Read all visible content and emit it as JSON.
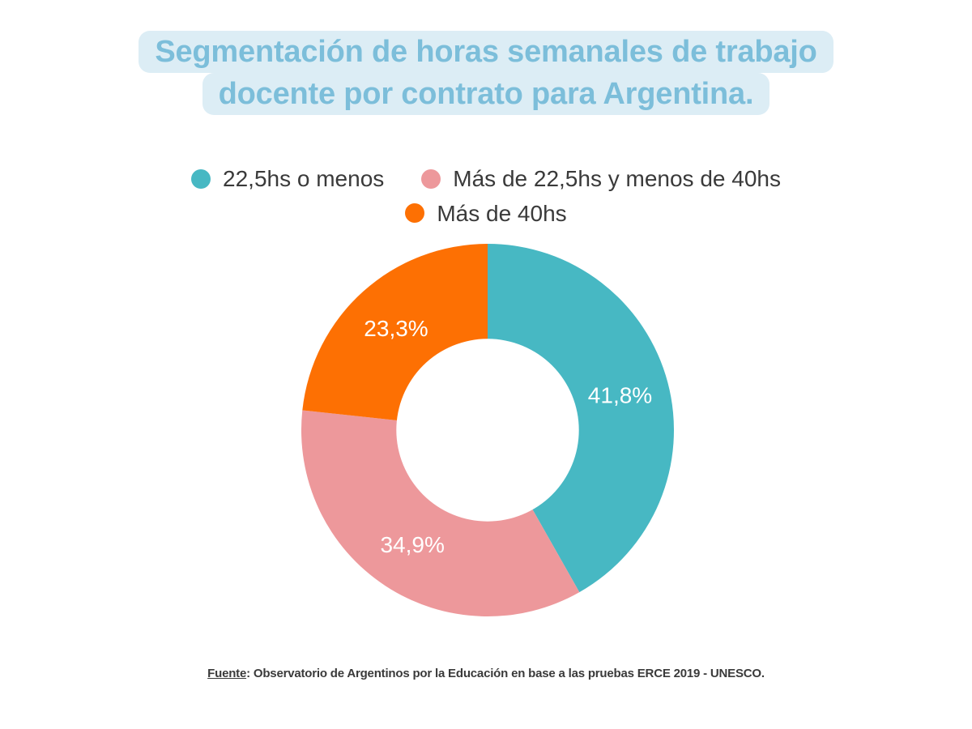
{
  "title": {
    "line1": "Segmentación de horas semanales de trabajo",
    "line2": "docente por contrato para Argentina.",
    "text_color": "#7cbeda",
    "highlight_color": "#dcedf5"
  },
  "chart_data": {
    "type": "pie",
    "donut": true,
    "title": "Segmentación de horas semanales de trabajo docente por contrato para Argentina.",
    "categories": [
      "22,5hs o menos",
      "Más de 22,5hs y menos de 40hs",
      "Más de 40hs"
    ],
    "values": [
      41.8,
      34.9,
      23.3
    ],
    "labels": [
      "41,8%",
      "34,9%",
      "23,3%"
    ],
    "colors": [
      "#47b8c3",
      "#ed989b",
      "#fd7003"
    ],
    "label_color": "#ffffff",
    "start_angle_deg": 0,
    "direction": "clockwise",
    "inner_radius_ratio": 0.49,
    "label_radius_ratio": 0.735,
    "legend_position": "top",
    "legend_text_color": "#3a3a3a"
  },
  "footer": {
    "source_label": "Fuente",
    "source_text": ": Observatorio de Argentinos por la Educación en base a las pruebas ERCE 2019 - UNESCO.",
    "text_color": "#3a3a3a"
  }
}
